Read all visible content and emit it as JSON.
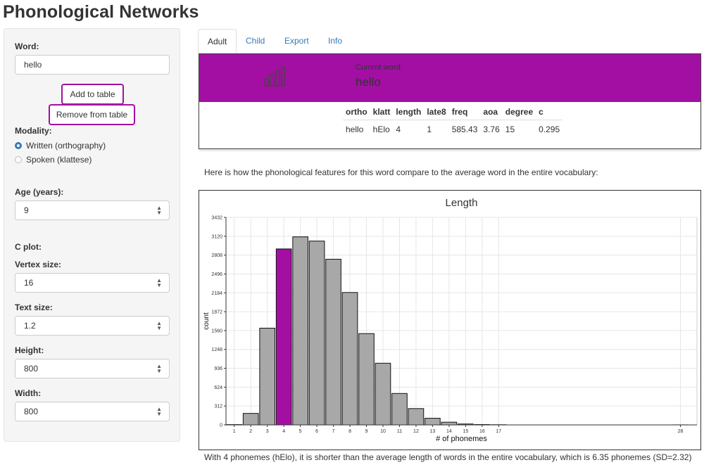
{
  "page": {
    "title": "Phonological Networks"
  },
  "sidebar": {
    "word": {
      "label": "Word:",
      "value": "hello"
    },
    "add_button": "Add to table",
    "remove_button": "Remove from table",
    "modality": {
      "label": "Modality:",
      "options": [
        "Written (orthography)",
        "Spoken (klattese)"
      ],
      "selected": "Written (orthography)"
    },
    "age": {
      "label": "Age (years):",
      "value": "9"
    },
    "c_plot_label": "C plot:",
    "vertex_size": {
      "label": "Vertex size:",
      "value": "16"
    },
    "text_size": {
      "label": "Text size:",
      "value": "1.2"
    },
    "height": {
      "label": "Height:",
      "value": "800"
    },
    "width": {
      "label": "Width:",
      "value": "800"
    }
  },
  "tabs": [
    {
      "label": "Adult",
      "active": true
    },
    {
      "label": "Child",
      "active": false
    },
    {
      "label": "Export",
      "active": false
    },
    {
      "label": "Info",
      "active": false
    }
  ],
  "word_panel": {
    "current_word_label": "Current word:",
    "current_word": "hello",
    "banner_color": "#a30fa3",
    "icon": "bar-chart-icon",
    "table": {
      "headers": [
        "ortho",
        "klatt",
        "length",
        "late8",
        "freq",
        "aoa",
        "degree",
        "c"
      ],
      "rows": [
        [
          "hello",
          "hElo",
          "4",
          "1",
          "585.43",
          "3.76",
          "15",
          "0.295"
        ]
      ]
    }
  },
  "compare_text": "Here is how the phonological features for this word compare to the average word in the entire vocabulary:",
  "result_text": "With 4 phonemes (hElo), it is shorter than the average length of words in the entire vocabulary, which is 6.35 phonemes (SD=2.32)",
  "chart_data": {
    "type": "bar",
    "title": "Length",
    "xlabel": "# of phonemes",
    "ylabel": "count",
    "x": [
      1,
      2,
      3,
      4,
      5,
      6,
      7,
      8,
      9,
      10,
      11,
      12,
      13,
      14,
      15,
      16,
      17,
      28
    ],
    "values": [
      5,
      190,
      1600,
      2910,
      3110,
      3040,
      2740,
      2190,
      1510,
      1020,
      520,
      270,
      110,
      45,
      15,
      6,
      3,
      1
    ],
    "highlight_x": 4,
    "highlight_color": "#a30fa3",
    "bar_color": "#a8a8a8",
    "yticks": [
      0,
      312,
      624,
      936,
      1248,
      1560,
      1872,
      2184,
      2496,
      2808,
      3120,
      3432
    ],
    "xticks": [
      1,
      2,
      3,
      4,
      5,
      6,
      7,
      8,
      9,
      10,
      11,
      12,
      13,
      14,
      15,
      16,
      17,
      28
    ],
    "ylim": [
      0,
      3432
    ],
    "xlim": [
      0.5,
      29
    ],
    "grid": true
  }
}
